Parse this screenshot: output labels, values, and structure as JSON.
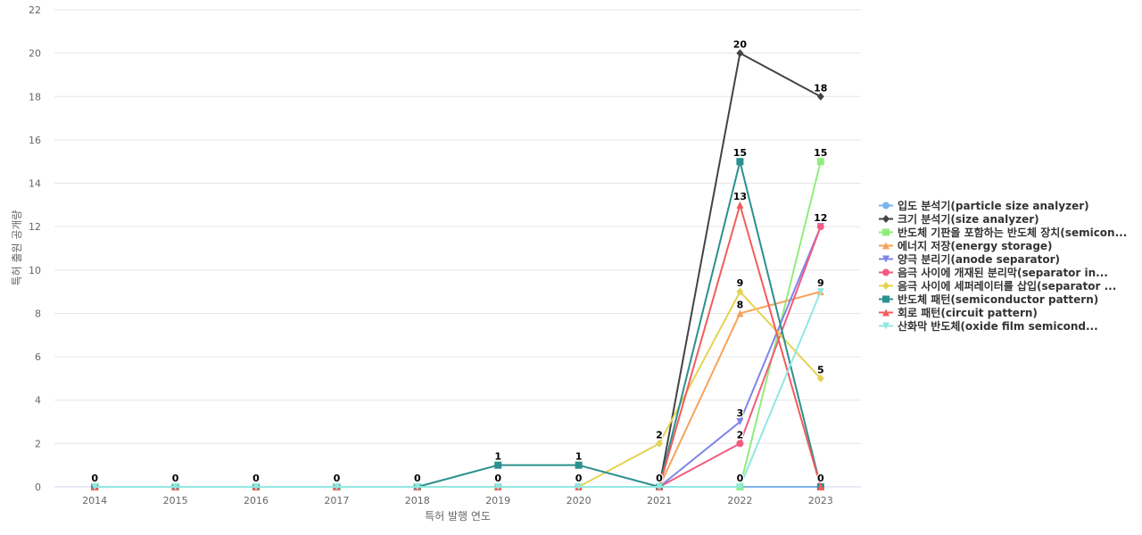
{
  "chart_data": {
    "type": "line",
    "title": "",
    "xlabel": "특허 발행 연도",
    "ylabel": "특허 출원 공개량",
    "categories": [
      "2014",
      "2015",
      "2016",
      "2017",
      "2018",
      "2019",
      "2020",
      "2021",
      "2022",
      "2023"
    ],
    "ylim": [
      0,
      22
    ],
    "yticks": [
      0,
      2,
      4,
      6,
      8,
      10,
      12,
      14,
      16,
      18,
      20,
      22
    ],
    "grid": true,
    "legend_position": "right",
    "series": [
      {
        "name": "입도 분석기(particle size analyzer)",
        "color": "#7cb5ec",
        "marker": "circle",
        "values": [
          0,
          0,
          0,
          0,
          0,
          0,
          0,
          0,
          0,
          0
        ]
      },
      {
        "name": "크기 분석기(size analyzer)",
        "color": "#434348",
        "marker": "diamond",
        "values": [
          0,
          0,
          0,
          0,
          0,
          0,
          0,
          0,
          20,
          18
        ]
      },
      {
        "name": "반도체 기판을 포함하는 반도체 장치(semicon...",
        "color": "#90ed7d",
        "marker": "square",
        "values": [
          0,
          0,
          0,
          0,
          0,
          0,
          0,
          0,
          0,
          15
        ]
      },
      {
        "name": "에너지 저장(energy storage)",
        "color": "#f7a35c",
        "marker": "triangle",
        "values": [
          0,
          0,
          0,
          0,
          0,
          0,
          0,
          0,
          8,
          9
        ]
      },
      {
        "name": "양극 분리기(anode separator)",
        "color": "#8085e9",
        "marker": "triangle-down",
        "values": [
          0,
          0,
          0,
          0,
          0,
          0,
          0,
          0,
          3,
          12
        ]
      },
      {
        "name": "음극 사이에 개재된 분리막(separator in...",
        "color": "#f15c80",
        "marker": "circle",
        "values": [
          0,
          0,
          0,
          0,
          0,
          0,
          0,
          0,
          2,
          12
        ]
      },
      {
        "name": "음극 사이에 세퍼레이터를 삽입(separator ...",
        "color": "#e4d354",
        "marker": "diamond",
        "values": [
          0,
          0,
          0,
          0,
          0,
          0,
          0,
          2,
          9,
          5
        ]
      },
      {
        "name": "반도체 패턴(semiconductor pattern)",
        "color": "#2b908f",
        "marker": "square",
        "values": [
          0,
          0,
          0,
          0,
          0,
          1,
          1,
          0,
          15,
          0
        ]
      },
      {
        "name": "회로 패턴(circuit pattern)",
        "color": "#f45b5b",
        "marker": "triangle",
        "values": [
          0,
          0,
          0,
          0,
          0,
          0,
          0,
          0,
          13,
          0
        ]
      },
      {
        "name": "산화막 반도체(oxide film semicond...",
        "color": "#91e8e1",
        "marker": "triangle-down",
        "values": [
          0,
          0,
          0,
          0,
          0,
          0,
          0,
          0,
          0,
          9
        ]
      }
    ],
    "data_labels": [
      {
        "x": "2014",
        "text": "0",
        "value": 0
      },
      {
        "x": "2015",
        "text": "0",
        "value": 0
      },
      {
        "x": "2016",
        "text": "0",
        "value": 0
      },
      {
        "x": "2017",
        "text": "0",
        "value": 0
      },
      {
        "x": "2018",
        "text": "0",
        "value": 0
      },
      {
        "x": "2019",
        "text": "1",
        "value": 1
      },
      {
        "x": "2019",
        "text": "0",
        "value": 0
      },
      {
        "x": "2020",
        "text": "1",
        "value": 1
      },
      {
        "x": "2020",
        "text": "0",
        "value": 0
      },
      {
        "x": "2021",
        "text": "2",
        "value": 2
      },
      {
        "x": "2021",
        "text": "0",
        "value": 0
      },
      {
        "x": "2022",
        "text": "20",
        "value": 20
      },
      {
        "x": "2022",
        "text": "15",
        "value": 15
      },
      {
        "x": "2022",
        "text": "13",
        "value": 13
      },
      {
        "x": "2022",
        "text": "9",
        "value": 9
      },
      {
        "x": "2022",
        "text": "8",
        "value": 8
      },
      {
        "x": "2022",
        "text": "3",
        "value": 3
      },
      {
        "x": "2022",
        "text": "2",
        "value": 2
      },
      {
        "x": "2022",
        "text": "0",
        "value": 0
      },
      {
        "x": "2023",
        "text": "18",
        "value": 18
      },
      {
        "x": "2023",
        "text": "15",
        "value": 15
      },
      {
        "x": "2023",
        "text": "12",
        "value": 12
      },
      {
        "x": "2023",
        "text": "9",
        "value": 9
      },
      {
        "x": "2023",
        "text": "5",
        "value": 5
      },
      {
        "x": "2023",
        "text": "0",
        "value": 0
      }
    ]
  }
}
